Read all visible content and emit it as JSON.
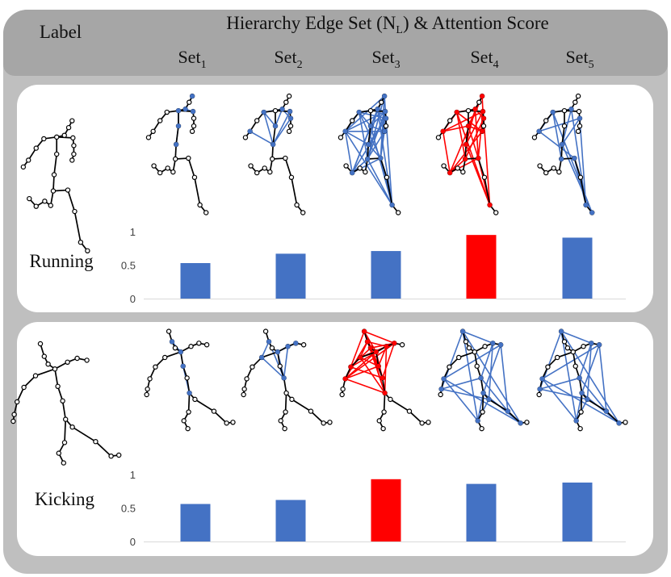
{
  "header": {
    "label_column": "Label",
    "title": "Hierarchy Edge Set (N",
    "title_sub": "L",
    "title_tail": ") & Attention Score",
    "sets": [
      {
        "base": "Set",
        "sub": "1"
      },
      {
        "base": "Set",
        "sub": "2"
      },
      {
        "base": "Set",
        "sub": "3"
      },
      {
        "base": "Set",
        "sub": "4"
      },
      {
        "base": "Set",
        "sub": "5"
      }
    ]
  },
  "rows": [
    {
      "label": "Running",
      "highlight_index": 3
    },
    {
      "label": "Kicking",
      "highlight_index": 2
    }
  ],
  "chart_data": [
    {
      "type": "bar",
      "categories": [
        "Set1",
        "Set2",
        "Set3",
        "Set4",
        "Set5"
      ],
      "values": [
        0.53,
        0.67,
        0.71,
        0.95,
        0.91
      ],
      "ylim": [
        0,
        1
      ],
      "yticks": [
        "0",
        "0.5",
        "1"
      ],
      "colors": [
        "#4472c4",
        "#4472c4",
        "#4472c4",
        "#ff0000",
        "#4472c4"
      ]
    },
    {
      "type": "bar",
      "categories": [
        "Set1",
        "Set2",
        "Set3",
        "Set4",
        "Set5"
      ],
      "values": [
        0.56,
        0.62,
        0.93,
        0.86,
        0.88
      ],
      "ylim": [
        0,
        1
      ],
      "yticks": [
        "0",
        "0.5",
        "1"
      ],
      "colors": [
        "#4472c4",
        "#4472c4",
        "#ff0000",
        "#4472c4",
        "#4472c4"
      ]
    }
  ],
  "colors": {
    "blue": "#4472c4",
    "red": "#ff0000",
    "header_bg": "#a6a6a6",
    "panel_bg": "#bfbfbf"
  }
}
